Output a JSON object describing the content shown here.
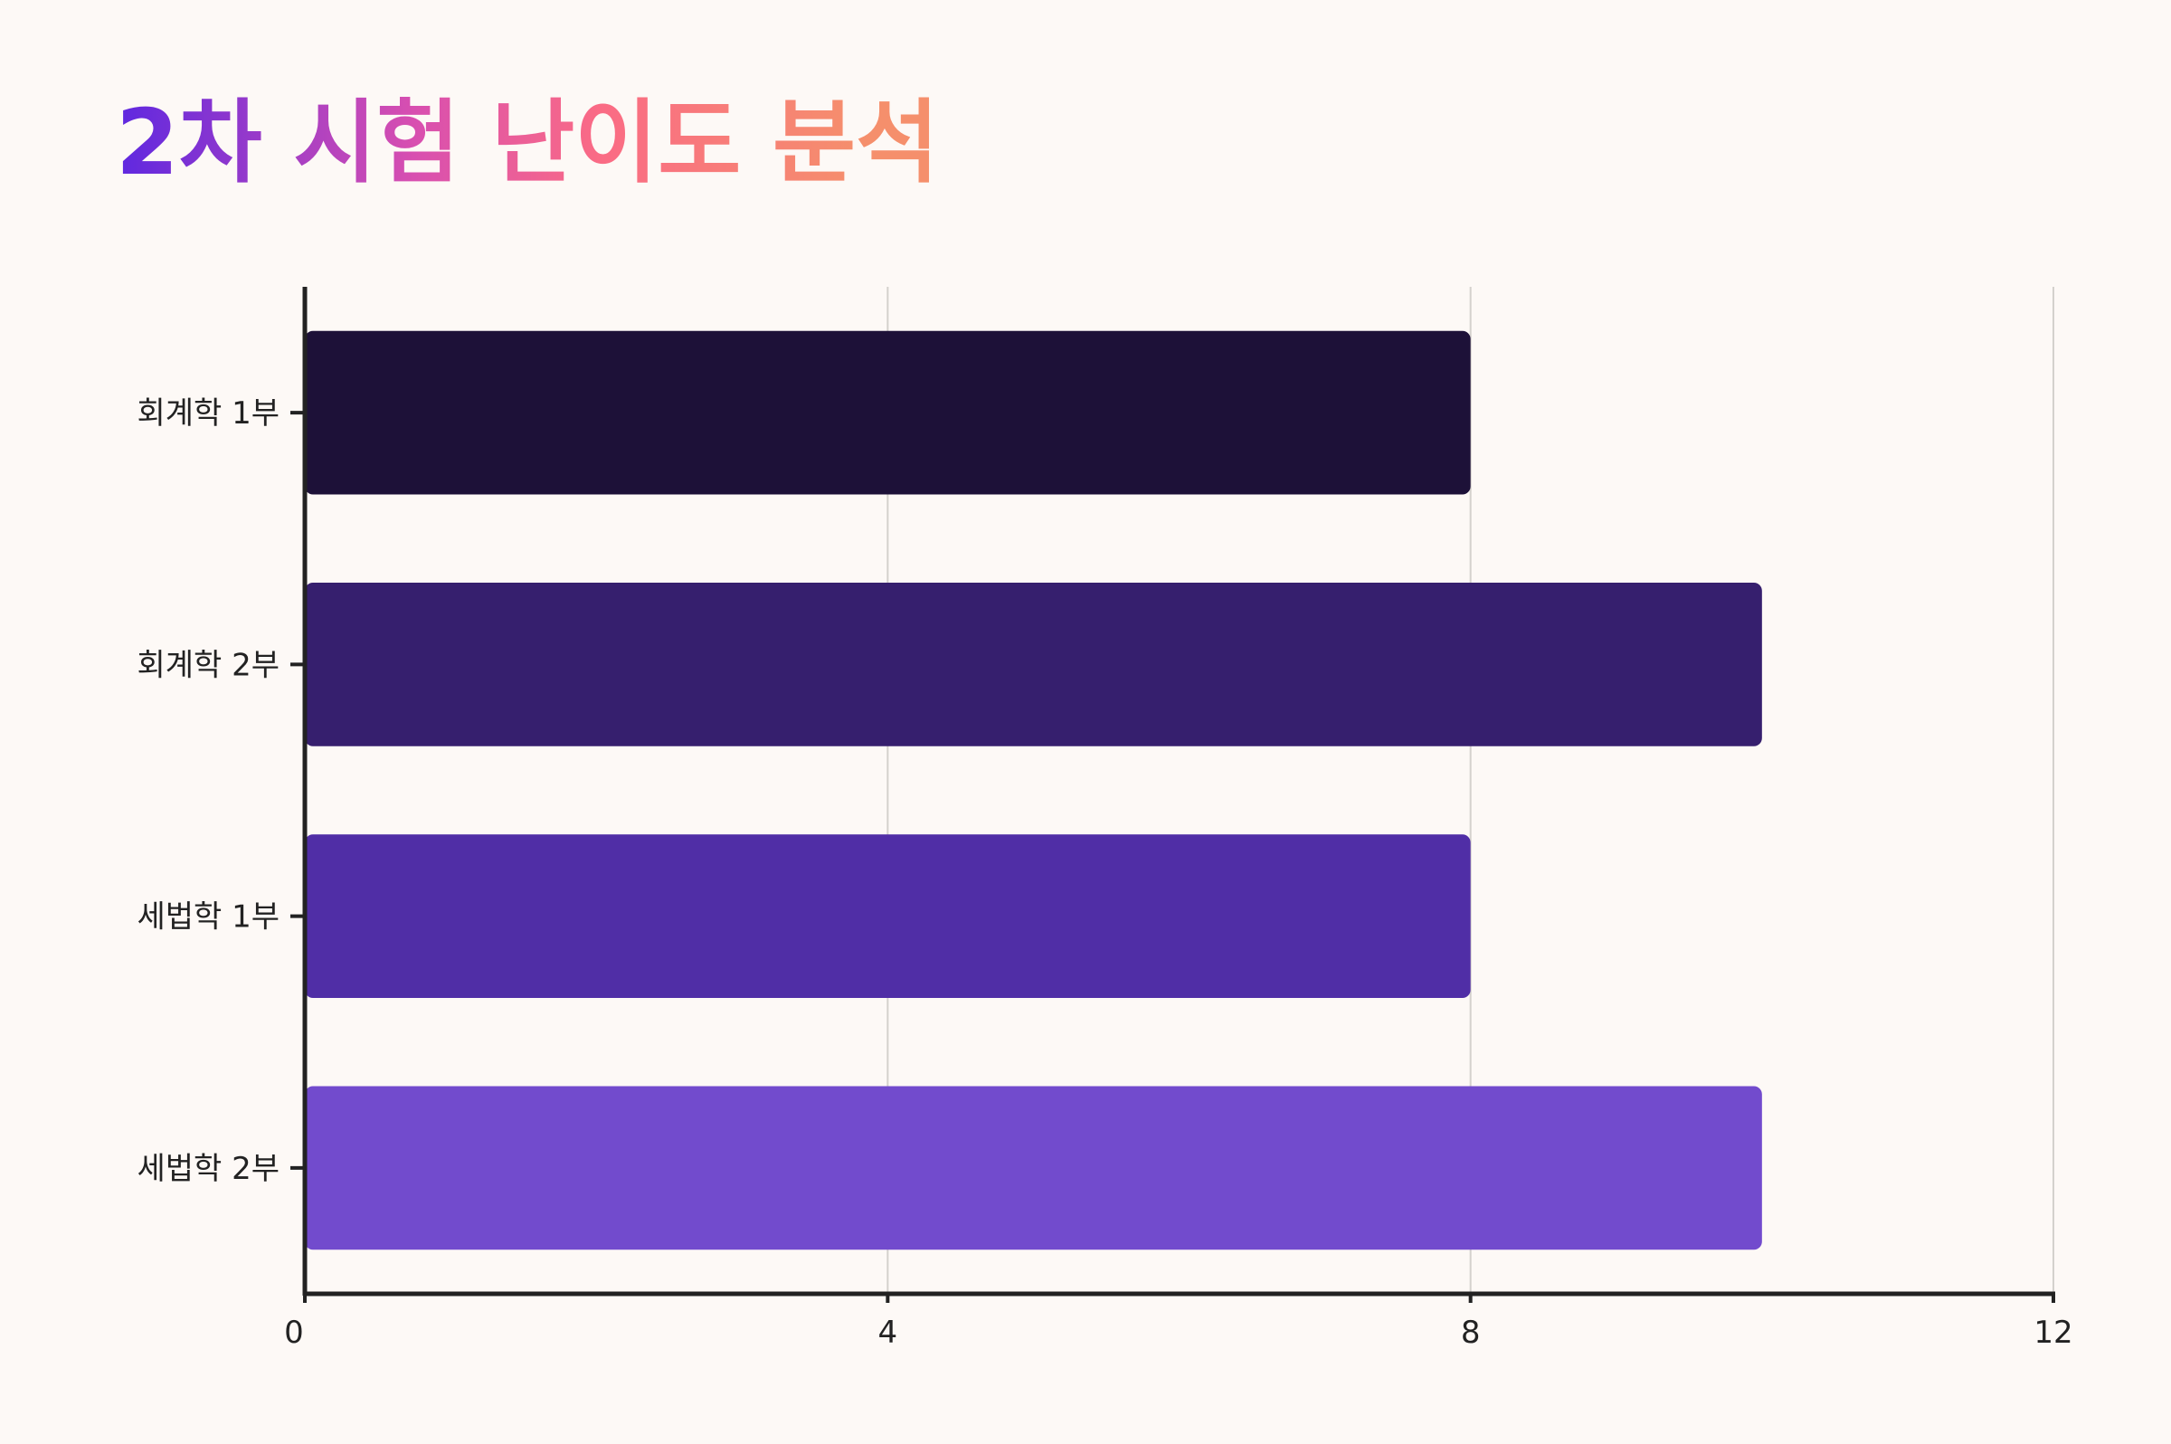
{
  "chart_data": {
    "type": "hbar",
    "title": "2차 시험 난이도 분석",
    "categories": [
      "회계학 1부",
      "회계학 2부",
      "세법학 1부",
      "세법학 2부"
    ],
    "values": [
      8,
      10,
      8,
      10
    ],
    "colors": [
      "#1d1138",
      "#361f6e",
      "#502ea6",
      "#724bcd"
    ],
    "xlim": [
      0,
      12
    ],
    "xticks": [
      0,
      4,
      8,
      12
    ],
    "grid": true
  }
}
